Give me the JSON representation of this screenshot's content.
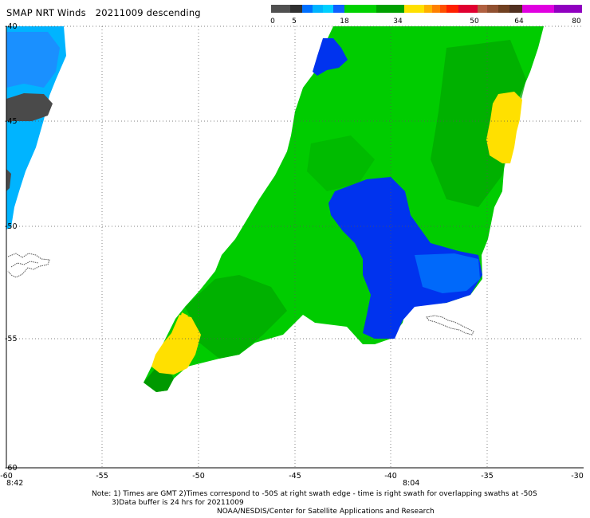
{
  "title": {
    "product": "SMAP NRT Winds",
    "date": "20211009",
    "pass": "descending"
  },
  "colorbar": {
    "segments": [
      {
        "range": [
          0,
          5
        ],
        "color": "#505050"
      },
      {
        "range": [
          5,
          18
        ],
        "color": "#00a8ff"
      },
      {
        "range": [
          18,
          34
        ],
        "color": "#00c800"
      },
      {
        "range": [
          34,
          50
        ],
        "color": "#ff8000"
      },
      {
        "range": [
          50,
          64
        ],
        "color": "#c05030"
      },
      {
        "range": [
          64,
          80
        ],
        "color": "#c000c0"
      }
    ],
    "labels": [
      "0",
      "5",
      "18",
      "34",
      "50",
      "64",
      "80"
    ]
  },
  "axes": {
    "x_ticks": [
      "-60",
      "-55",
      "-50",
      "-45",
      "-40",
      "-35",
      "-30"
    ],
    "y_ticks": [
      "-40",
      "-45",
      "-50",
      "-55",
      "-60"
    ]
  },
  "swath_times": {
    "left": "8:42",
    "right": "8:04"
  },
  "notes": {
    "line1": "Note: 1) Times are GMT 2)Times correspond to -50S at right swath edge - time is right swath for overlapping swaths at -50S",
    "line2": "3)Data buffer is 24 hrs for 20211009",
    "line3": "NOAA/NESDIS/Center for Satellite Applications and Research"
  },
  "legend_colors": {
    "calm": "#4a4a4a",
    "light_blue": "#00b4ff",
    "dark_blue": "#0033ee",
    "green": "#00cc00",
    "dark_green": "#009900",
    "yellow": "#ffe000"
  }
}
